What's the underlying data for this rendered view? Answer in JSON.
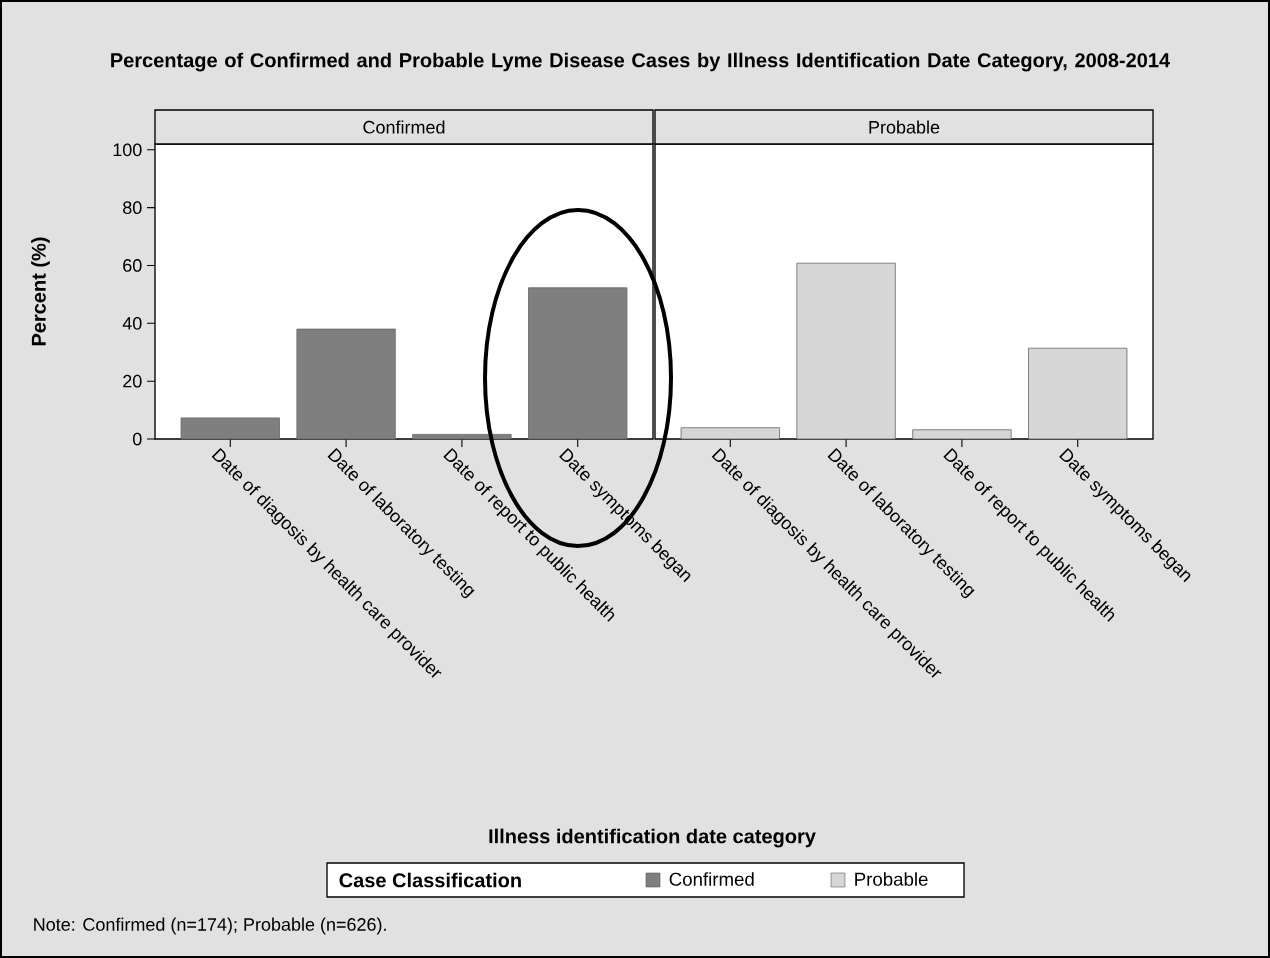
{
  "chart_data": [
    {
      "type": "bar",
      "title": "Percentage of Confirmed and Probable Lyme Disease Cases by Illness Identification Date Category, 2008-2014",
      "subtitle": "Confirmed",
      "xlabel": "Illness identification date category",
      "ylabel": "Percent (%)",
      "legend": "bottom",
      "legend_title": "Case Classification",
      "annotations": [
        "Note: Confirmed (n=174); Probable (n=626)."
      ],
      "categories": [
        "Date of diagosis by health care provider",
        "Date of laboratory testing",
        "Date of report to public health",
        "Date symptoms began"
      ],
      "series": [
        {
          "name": "Confirmed",
          "color": "#7f7f7f",
          "values": [
            7.3,
            38.0,
            1.6,
            52.3
          ]
        }
      ],
      "ylim": [
        0,
        102
      ],
      "yticks": [
        0,
        20,
        40,
        60,
        80,
        100
      ]
    },
    {
      "type": "bar",
      "subtitle": "Probable",
      "legend": "bottom",
      "tick_labels": "x",
      "categories": [
        "Date of diagosis by health care provider",
        "Date of laboratory testing",
        "Date of report to public health",
        "Date symptoms began"
      ],
      "series": [
        {
          "name": "Probable",
          "color": "#d6d6d6",
          "values": [
            3.9,
            60.8,
            3.2,
            31.4
          ]
        }
      ],
      "ylim": [
        0,
        102
      ]
    }
  ]
}
